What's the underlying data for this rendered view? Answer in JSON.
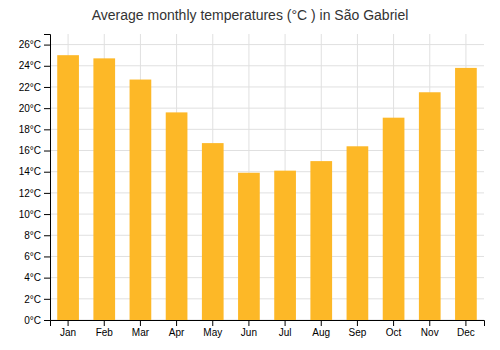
{
  "chart_data": {
    "type": "bar",
    "title": "Average monthly temperatures (°C ) in São Gabriel",
    "categories": [
      "Jan",
      "Feb",
      "Mar",
      "Apr",
      "May",
      "Jun",
      "Jul",
      "Aug",
      "Sep",
      "Oct",
      "Nov",
      "Dec"
    ],
    "values": [
      25.0,
      24.7,
      22.7,
      19.6,
      16.7,
      13.9,
      14.1,
      15.0,
      16.4,
      19.1,
      21.5,
      23.8
    ],
    "color": "#FDB827",
    "ylim": [
      0,
      27
    ],
    "yticks": [
      {
        "value": 0,
        "label": "0°C"
      },
      {
        "value": 2,
        "label": "2°C"
      },
      {
        "value": 4,
        "label": "4°C"
      },
      {
        "value": 6,
        "label": "6°C"
      },
      {
        "value": 8,
        "label": "8°C"
      },
      {
        "value": 10,
        "label": "10°C"
      },
      {
        "value": 12,
        "label": "12°C"
      },
      {
        "value": 14,
        "label": "14°C"
      },
      {
        "value": 16,
        "label": "16°C"
      },
      {
        "value": 18,
        "label": "18°C"
      },
      {
        "value": 20,
        "label": "20°C"
      },
      {
        "value": 22,
        "label": "22°C"
      },
      {
        "value": 24,
        "label": "24°C"
      },
      {
        "value": 26,
        "label": "26°C"
      }
    ],
    "grid": true
  }
}
